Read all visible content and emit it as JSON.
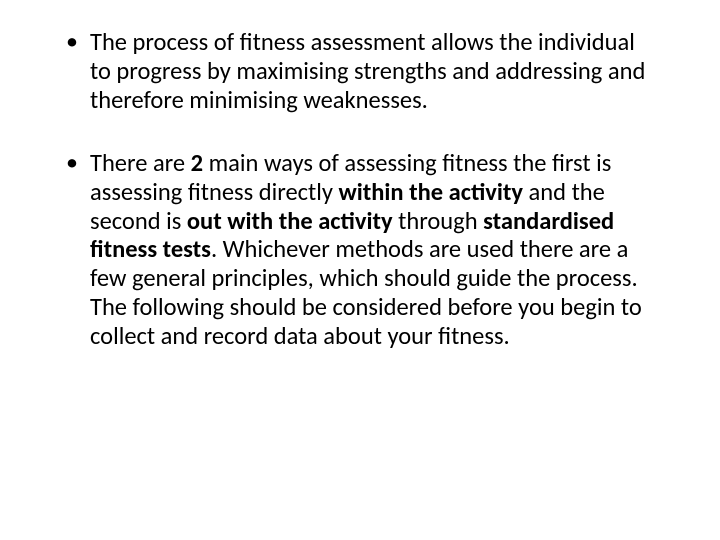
{
  "slide": {
    "background_color": "#ffffff",
    "text_color": "#000000",
    "font_family": "Calibri",
    "font_size_pt": 24,
    "bullets": [
      {
        "runs": [
          {
            "text": "The process of fitness assessment allows the individual to progress by maximising strengths and addressing and therefore minimising weaknesses.",
            "bold": false
          }
        ]
      },
      {
        "runs": [
          {
            "text": "There are ",
            "bold": false
          },
          {
            "text": "2",
            "bold": true
          },
          {
            "text": " main ways of assessing fitness the first is assessing fitness directly ",
            "bold": false
          },
          {
            "text": "within the activity",
            "bold": true
          },
          {
            "text": " and the second is ",
            "bold": false
          },
          {
            "text": "out with the activity",
            "bold": true
          },
          {
            "text": " through ",
            "bold": false
          },
          {
            "text": "standardised fitness tests",
            "bold": true
          },
          {
            "text": ". Whichever methods are used there are a few general principles, which should guide the process. The following should be considered before you begin to collect and record data about your fitness.",
            "bold": false
          }
        ]
      }
    ]
  }
}
